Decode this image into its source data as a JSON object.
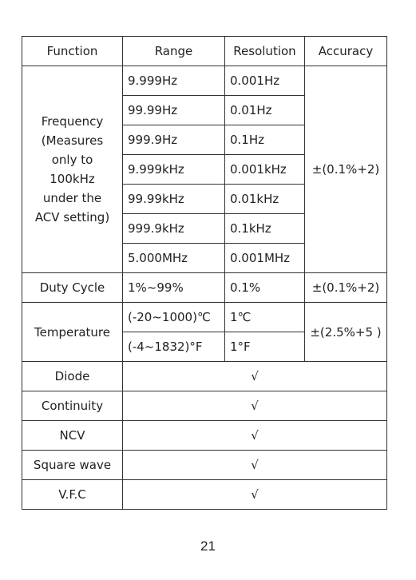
{
  "table": {
    "header": [
      "Function",
      "Range",
      "Resolution",
      "Accuracy"
    ],
    "groups": [
      {
        "function": "Frequency\n(Measures\nonly to\n100kHz\nunder the\nACV setting)",
        "ranges": [
          [
            "9.999Hz",
            "0.001Hz"
          ],
          [
            "99.99Hz",
            "0.01Hz"
          ],
          [
            "999.9Hz",
            "0.1Hz"
          ],
          [
            "9.999kHz",
            "0.001kHz"
          ],
          [
            "99.99kHz",
            "0.01kHz"
          ],
          [
            "999.9kHz",
            "0.1kHz"
          ],
          [
            "5.000MHz",
            "0.001MHz"
          ]
        ],
        "accuracy": "±(0.1%+2)"
      },
      {
        "function": "Duty Cycle",
        "ranges": [
          [
            "1%~99%",
            "0.1%"
          ]
        ],
        "accuracy": "±(0.1%+2)"
      },
      {
        "function": "Temperature",
        "ranges": [
          [
            "(-20~1000)℃",
            "1℃"
          ],
          [
            "(-4~1832)°F",
            "1°F"
          ]
        ],
        "accuracy": "±(2.5%+5 )"
      },
      {
        "function": "Diode",
        "support": "√"
      },
      {
        "function": "Continuity",
        "support": "√"
      },
      {
        "function": "NCV",
        "support": "√"
      },
      {
        "function": "Square wave",
        "support": "√"
      },
      {
        "function": "V.F.C",
        "support": "√"
      }
    ]
  },
  "page_number": "21"
}
